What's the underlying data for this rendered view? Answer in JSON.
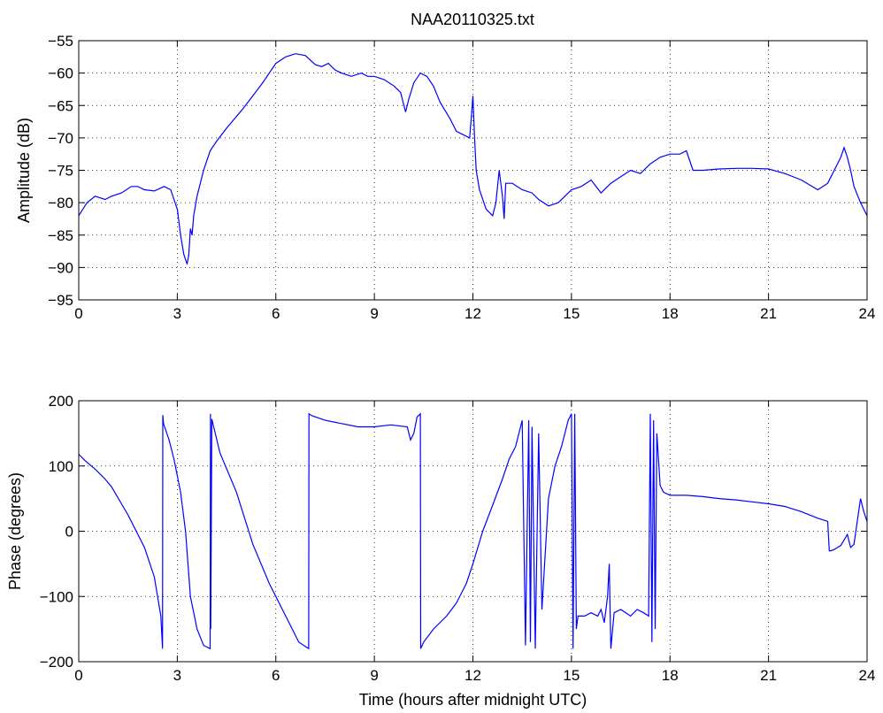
{
  "figure": {
    "title": "NAA20110325.txt",
    "line_color": "#0000ff",
    "background": "#ffffff"
  },
  "chart_data": [
    {
      "type": "line",
      "title": "NAA20110325.txt",
      "xlabel": "",
      "ylabel": "Amplitude (dB)",
      "xlim": [
        0,
        24
      ],
      "ylim": [
        -95,
        -55
      ],
      "xticks": [
        0,
        3,
        6,
        9,
        12,
        15,
        18,
        21,
        24
      ],
      "yticks": [
        -95,
        -90,
        -85,
        -80,
        -75,
        -70,
        -65,
        -60,
        -55
      ],
      "grid": true,
      "series": [
        {
          "color": "#0000ff",
          "x": [
            0,
            0.25,
            0.5,
            0.8,
            1.0,
            1.3,
            1.6,
            1.8,
            2.0,
            2.3,
            2.6,
            2.8,
            3.0,
            3.1,
            3.2,
            3.3,
            3.35,
            3.4,
            3.45,
            3.5,
            3.6,
            3.8,
            4.0,
            4.2,
            4.5,
            5.0,
            5.3,
            5.6,
            6.0,
            6.3,
            6.6,
            6.9,
            7.2,
            7.4,
            7.6,
            7.8,
            8.0,
            8.3,
            8.6,
            8.8,
            9.0,
            9.3,
            9.6,
            9.8,
            9.95,
            10.05,
            10.2,
            10.4,
            10.6,
            10.8,
            11.0,
            11.3,
            11.5,
            11.7,
            11.9,
            11.95,
            12.0,
            12.05,
            12.1,
            12.2,
            12.4,
            12.6,
            12.7,
            12.8,
            12.9,
            12.95,
            13.0,
            13.2,
            13.5,
            13.8,
            14.0,
            14.3,
            14.6,
            14.8,
            15.0,
            15.3,
            15.6,
            15.9,
            16.2,
            16.5,
            16.8,
            17.1,
            17.4,
            17.7,
            18.0,
            18.3,
            18.5,
            18.7,
            19.0,
            19.5,
            20.0,
            20.5,
            21.0,
            21.5,
            22.0,
            22.5,
            22.8,
            23.0,
            23.2,
            23.3,
            23.4,
            23.5,
            23.6,
            23.8,
            24.0
          ],
          "y": [
            -82,
            -80,
            -79,
            -79.5,
            -79,
            -78.5,
            -77.5,
            -77.5,
            -78,
            -78.2,
            -77.5,
            -78,
            -81,
            -85,
            -88,
            -89.5,
            -88,
            -84,
            -85,
            -82,
            -79,
            -75,
            -72,
            -70.5,
            -68.5,
            -65.5,
            -63.5,
            -61.5,
            -58.5,
            -57.5,
            -57,
            -57.3,
            -58.7,
            -59,
            -58.5,
            -59.5,
            -60,
            -60.5,
            -60,
            -60.5,
            -60.5,
            -61,
            -62,
            -63,
            -66,
            -64,
            -61.5,
            -60,
            -60.5,
            -62,
            -64.5,
            -67,
            -69,
            -69.5,
            -70,
            -67,
            -63.5,
            -70,
            -75,
            -78,
            -81,
            -82,
            -80,
            -75,
            -79,
            -82.5,
            -77,
            -77,
            -78,
            -78.5,
            -79.5,
            -80.5,
            -80,
            -79,
            -78,
            -77.5,
            -76.5,
            -78.5,
            -77,
            -76,
            -75,
            -75.5,
            -74,
            -73,
            -72.5,
            -72.5,
            -72,
            -75,
            -75,
            -74.8,
            -74.7,
            -74.7,
            -74.8,
            -75.5,
            -76.5,
            -78,
            -77,
            -75,
            -73,
            -71.5,
            -73,
            -75,
            -77.5,
            -80,
            -82
          ]
        }
      ]
    },
    {
      "type": "line",
      "title": "",
      "xlabel": "Time (hours after midnight UTC)",
      "ylabel": "Phase (degrees)",
      "xlim": [
        0,
        24
      ],
      "ylim": [
        -200,
        200
      ],
      "xticks": [
        0,
        3,
        6,
        9,
        12,
        15,
        18,
        21,
        24
      ],
      "yticks": [
        -200,
        -100,
        0,
        100,
        200
      ],
      "grid": true,
      "series": [
        {
          "color": "#0000ff",
          "x": [
            0,
            0.2,
            0.5,
            0.8,
            1.0,
            1.5,
            2.0,
            2.3,
            2.5,
            2.55,
            2.56,
            2.58,
            2.75,
            2.9,
            3.1,
            3.25,
            3.4,
            3.6,
            3.8,
            4.0,
            4.01,
            4.02,
            4.05,
            4.3,
            4.8,
            5.3,
            5.8,
            6.3,
            6.7,
            7.0,
            7.01,
            7.1,
            7.5,
            8.0,
            8.5,
            9.0,
            9.5,
            10.0,
            10.1,
            10.2,
            10.3,
            10.4,
            10.41,
            10.5,
            10.8,
            11.2,
            11.5,
            11.8,
            12.0,
            12.3,
            12.6,
            12.9,
            13.1,
            13.3,
            13.5,
            13.6,
            13.7,
            13.75,
            13.8,
            13.9,
            14.0,
            14.1,
            14.3,
            14.5,
            14.7,
            14.9,
            15.0,
            15.05,
            15.1,
            15.15,
            15.2,
            15.4,
            15.6,
            15.8,
            15.9,
            16.0,
            16.1,
            16.15,
            16.2,
            16.3,
            16.5,
            16.8,
            17.0,
            17.2,
            17.35,
            17.4,
            17.45,
            17.5,
            17.55,
            17.6,
            17.7,
            17.8,
            18.0,
            18.5,
            19.0,
            19.5,
            20.0,
            20.5,
            21.0,
            21.5,
            22.0,
            22.5,
            22.8,
            22.85,
            22.9,
            23.0,
            23.2,
            23.4,
            23.5,
            23.6,
            23.8,
            23.9,
            24.0
          ],
          "y": [
            118,
            108,
            95,
            80,
            68,
            25,
            -25,
            -70,
            -130,
            -180,
            178,
            165,
            140,
            110,
            60,
            0,
            -100,
            -150,
            -175,
            -180,
            180,
            -150,
            172,
            120,
            60,
            -20,
            -80,
            -130,
            -170,
            -180,
            180,
            177,
            170,
            165,
            160,
            160,
            163,
            160,
            140,
            150,
            175,
            180,
            -180,
            -170,
            -150,
            -130,
            -110,
            -80,
            -50,
            0,
            40,
            80,
            110,
            130,
            170,
            -175,
            170,
            -170,
            160,
            -180,
            150,
            -120,
            50,
            100,
            130,
            170,
            180,
            -180,
            180,
            -150,
            -130,
            -130,
            -125,
            -130,
            -120,
            -140,
            -100,
            -50,
            -180,
            -125,
            -120,
            -130,
            -120,
            -125,
            -130,
            180,
            -170,
            170,
            -150,
            150,
            70,
            60,
            55,
            55,
            53,
            50,
            48,
            45,
            42,
            38,
            30,
            20,
            15,
            -30,
            -30,
            -28,
            -22,
            -5,
            -25,
            -20,
            50,
            30,
            15
          ]
        }
      ]
    }
  ]
}
